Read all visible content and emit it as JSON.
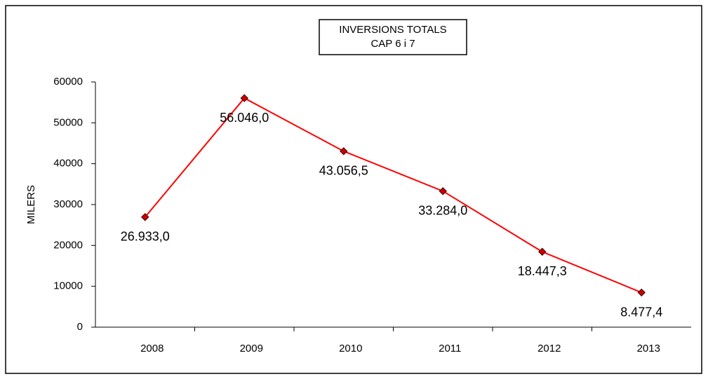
{
  "chart_data": {
    "type": "line",
    "title": "INVERSIONS TOTALS",
    "subtitle": "CAP 6 i 7",
    "y_label": "MILERS",
    "categories": [
      "2008",
      "2009",
      "2010",
      "2011",
      "2012",
      "2013"
    ],
    "series": [
      {
        "name": null,
        "color": "#ff0000",
        "marker_color": "#cc0000",
        "values": [
          26933.0,
          56046.0,
          43056.5,
          33284.0,
          18447.3,
          8477.4
        ],
        "value_labels": [
          "26.933,0",
          "56.046,0",
          "43.056,5",
          "33.284,0",
          "18.447,3",
          "8.477,4"
        ]
      }
    ],
    "ylim": [
      0,
      60000
    ],
    "yticks": [
      0,
      10000,
      20000,
      30000,
      40000,
      50000,
      60000
    ],
    "grid": false
  }
}
